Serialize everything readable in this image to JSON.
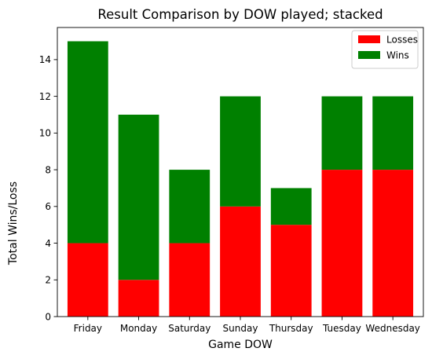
{
  "chart_data": {
    "type": "bar",
    "stacked": true,
    "title": "Result Comparison by DOW played; stacked",
    "xlabel": "Game DOW",
    "ylabel": "Total Wins/Loss",
    "categories": [
      "Friday",
      "Monday",
      "Saturday",
      "Sunday",
      "Thursday",
      "Tuesday",
      "Wednesday"
    ],
    "series": [
      {
        "name": "Losses",
        "color": "#ff0000",
        "values": [
          4,
          2,
          4,
          6,
          5,
          8,
          8
        ]
      },
      {
        "name": "Wins",
        "color": "#008000",
        "values": [
          11,
          9,
          4,
          6,
          2,
          4,
          4
        ]
      }
    ],
    "ylim": [
      0,
      15.75
    ],
    "yticks": [
      0,
      2,
      4,
      6,
      8,
      10,
      12,
      14
    ],
    "grid": false,
    "legend_position": "top-right"
  }
}
